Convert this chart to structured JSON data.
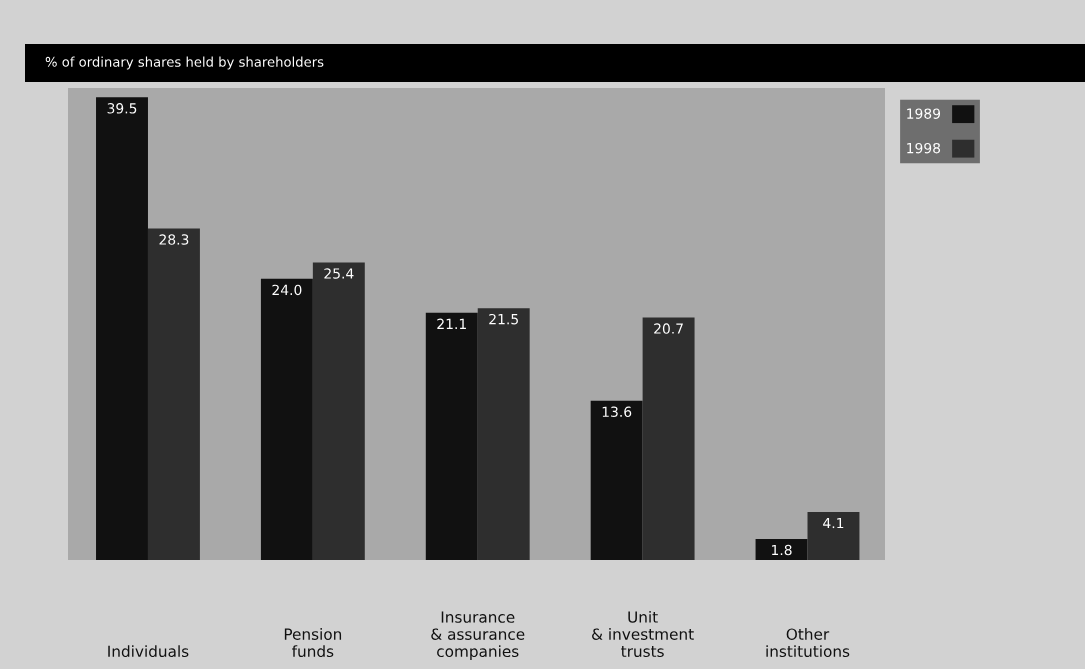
{
  "chart_data": {
    "type": "bar",
    "title": "% of ordinary shares held by shareholders",
    "categories": [
      "Individuals",
      "Pension\nfunds",
      "Insurance\n& assurance\ncompanies",
      "Unit\n& investment\ntrusts",
      "Other\ninstitutions"
    ],
    "series": [
      {
        "name": "1989",
        "color": "#111111",
        "values": [
          39.5,
          24.0,
          21.1,
          13.6,
          1.8
        ],
        "value_labels": [
          "39.5",
          "24.0",
          "21.1",
          "13.6",
          "1.8"
        ]
      },
      {
        "name": "1998",
        "color": "#2e2e2e",
        "values": [
          28.3,
          25.4,
          21.5,
          20.7,
          4.1
        ],
        "value_labels": [
          "28.3",
          "25.4",
          "21.5",
          "20.7",
          "4.1"
        ]
      }
    ],
    "grid": false,
    "legend": "top right"
  }
}
